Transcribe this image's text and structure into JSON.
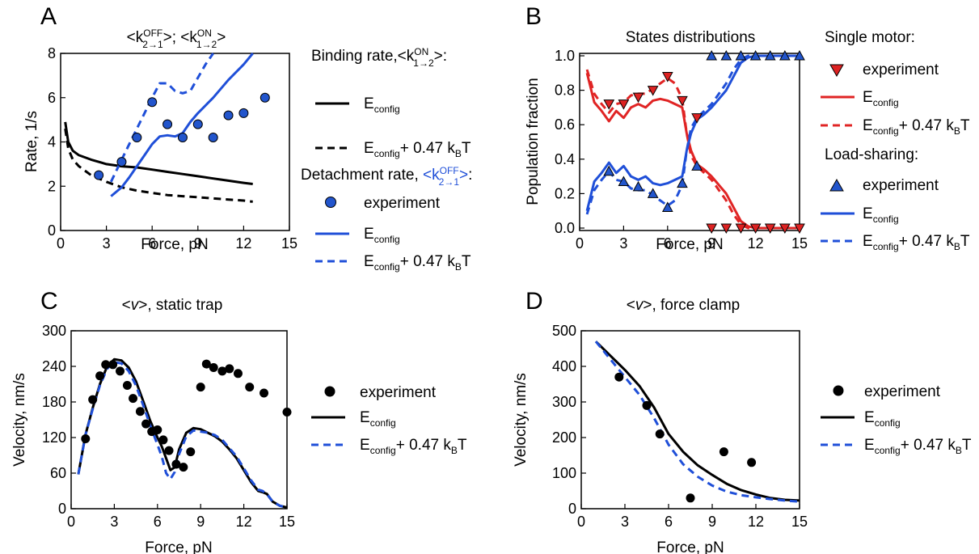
{
  "colors": {
    "black": "#000000",
    "blue": "#1f4fd8",
    "red": "#e02424",
    "marker_blue": "#2255cc",
    "marker_red": "#dd2222"
  },
  "panels": {
    "A": {
      "letter": "A",
      "title_parts": [
        "<k",
        "OFF",
        "2→1",
        ">; <k",
        "ON",
        "1→2",
        ">"
      ],
      "xlabel": "Force, pN",
      "ylabel": "Rate, 1/s",
      "legend": {
        "binding_header": [
          "Binding rate,<k",
          "ON",
          "1→2",
          ">:"
        ],
        "detach_header": [
          "Detachment rate, ",
          "<k",
          "OFF",
          "2→1",
          ">",
          ":"
        ]
      }
    },
    "B": {
      "letter": "B",
      "title": "States distributions",
      "xlabel": "Force, pN",
      "ylabel": "Population fraction",
      "legend": {
        "single_header": "Single motor:",
        "load_header": "Load-sharing:"
      }
    },
    "C": {
      "letter": "C",
      "title_parts": [
        "<",
        "v",
        ">, static trap"
      ],
      "xlabel": "Force, pN",
      "ylabel": "Velocity, nm/s"
    },
    "D": {
      "letter": "D",
      "title_parts": [
        "<",
        "v",
        ">, force clamp"
      ],
      "xlabel": "Force, pN",
      "ylabel": "Velocity, nm/s"
    }
  },
  "legend_labels": {
    "experiment": "experiment",
    "E": "E",
    "config_sub": "config",
    "plus_text": "+ 0.47 k",
    "B_sub": "B",
    "T": "T"
  },
  "chart_data": [
    {
      "panel": "A",
      "type": "scatter",
      "xlim": [
        0,
        15
      ],
      "ylim": [
        0,
        8
      ],
      "xticks": [
        0,
        3,
        6,
        9,
        12,
        15
      ],
      "yticks": [
        0,
        2,
        4,
        6,
        8
      ],
      "series": [
        {
          "role": "binding",
          "style": "solid",
          "color": "#000000",
          "x": [
            0.3,
            0.5,
            0.8,
            1.2,
            2,
            3,
            4,
            5,
            6,
            7,
            8,
            9,
            10,
            11,
            12,
            12.6
          ],
          "y": [
            4.9,
            4.0,
            3.6,
            3.4,
            3.2,
            3.0,
            2.9,
            2.85,
            2.75,
            2.65,
            2.55,
            2.45,
            2.35,
            2.25,
            2.15,
            2.1
          ]
        },
        {
          "role": "binding",
          "style": "dashed",
          "color": "#000000",
          "x": [
            0.3,
            0.5,
            0.8,
            1.2,
            2,
            3,
            4,
            5,
            6,
            7,
            8,
            9,
            10,
            11,
            12,
            12.6
          ],
          "y": [
            4.6,
            3.7,
            3.2,
            2.9,
            2.5,
            2.2,
            1.95,
            1.8,
            1.7,
            1.6,
            1.55,
            1.5,
            1.45,
            1.4,
            1.35,
            1.3
          ]
        },
        {
          "role": "detachment",
          "style": "markers",
          "color": "#2255cc",
          "x": [
            2.5,
            4,
            5,
            6,
            7,
            8,
            9,
            10,
            11,
            12,
            13.4
          ],
          "y": [
            2.5,
            3.1,
            4.2,
            5.8,
            4.8,
            4.2,
            4.8,
            4.2,
            5.2,
            5.3,
            6.0
          ]
        },
        {
          "role": "detachment",
          "style": "solid",
          "color": "#1f4fd8",
          "x": [
            3.3,
            4,
            4.5,
            5,
            5.5,
            6,
            6.5,
            7,
            7.5,
            8,
            8.5,
            9,
            10,
            11,
            12,
            12.6
          ],
          "y": [
            1.55,
            1.95,
            2.4,
            2.9,
            3.4,
            3.9,
            4.25,
            4.3,
            4.25,
            4.4,
            4.9,
            5.3,
            6.0,
            6.8,
            7.5,
            8.0
          ]
        },
        {
          "role": "detachment",
          "style": "dashed",
          "color": "#1f4fd8",
          "x": [
            3.3,
            4,
            4.5,
            5,
            5.5,
            6,
            6.5,
            7,
            7.5,
            8,
            8.5,
            9,
            9.5,
            10
          ],
          "y": [
            2.2,
            3.2,
            3.9,
            4.6,
            5.3,
            6.0,
            6.65,
            6.65,
            6.3,
            6.2,
            6.3,
            6.9,
            7.5,
            8.0
          ]
        }
      ]
    },
    {
      "panel": "B",
      "type": "scatter",
      "xlim": [
        0,
        15
      ],
      "ylim": [
        0,
        1.0
      ],
      "xticks": [
        0,
        3,
        6,
        9,
        12,
        15
      ],
      "yticks": [
        0.0,
        0.2,
        0.4,
        0.6,
        0.8,
        1.0
      ],
      "series": [
        {
          "name": "Single motor: experiment",
          "style": "markers-down",
          "color": "#dd2222",
          "x": [
            2,
            3,
            4,
            5,
            6,
            7,
            8,
            9,
            10,
            11,
            12,
            13,
            14,
            15
          ],
          "y": [
            0.72,
            0.72,
            0.76,
            0.8,
            0.88,
            0.74,
            0.64,
            0.0,
            0.0,
            0.0,
            0.0,
            0.0,
            0.0,
            0.0
          ]
        },
        {
          "name": "Single motor: E_config",
          "style": "solid",
          "color": "#e02424",
          "x": [
            0.5,
            1,
            1.5,
            2,
            2.5,
            3,
            3.5,
            4,
            4.5,
            5,
            5.5,
            6,
            6.5,
            7,
            7.3,
            7.6,
            8,
            8.5,
            9,
            9.5,
            10,
            10.5,
            11,
            11.5,
            12,
            13,
            14,
            15
          ],
          "y": [
            0.9,
            0.73,
            0.68,
            0.62,
            0.68,
            0.64,
            0.7,
            0.72,
            0.7,
            0.74,
            0.75,
            0.74,
            0.72,
            0.7,
            0.55,
            0.45,
            0.37,
            0.34,
            0.3,
            0.25,
            0.2,
            0.12,
            0.04,
            0.01,
            0.0,
            0.0,
            0.0,
            0.0
          ]
        },
        {
          "name": "Single motor: E_config + 0.47",
          "style": "dashed",
          "color": "#e02424",
          "x": [
            0.5,
            1,
            1.5,
            2,
            2.5,
            3,
            3.5,
            4,
            4.5,
            5,
            5.5,
            6,
            6.5,
            7,
            7.3,
            7.6,
            8,
            8.5,
            9,
            9.5,
            10,
            10.5,
            11,
            11.5,
            12,
            13,
            14,
            15
          ],
          "y": [
            0.92,
            0.78,
            0.72,
            0.67,
            0.72,
            0.73,
            0.77,
            0.78,
            0.78,
            0.81,
            0.84,
            0.87,
            0.84,
            0.75,
            0.55,
            0.42,
            0.36,
            0.32,
            0.28,
            0.22,
            0.16,
            0.08,
            0.02,
            0.0,
            0.0,
            0.0,
            0.0,
            0.0
          ]
        },
        {
          "name": "Load-sharing: experiment",
          "style": "markers-up",
          "color": "#2255cc",
          "x": [
            2,
            3,
            4,
            5,
            6,
            7,
            8,
            9,
            10,
            11,
            12,
            13,
            14,
            15
          ],
          "y": [
            0.33,
            0.27,
            0.24,
            0.2,
            0.12,
            0.26,
            0.36,
            1.0,
            1.0,
            1.0,
            1.0,
            1.0,
            1.0,
            1.0
          ]
        },
        {
          "name": "Load-sharing: E_config",
          "style": "solid",
          "color": "#1f4fd8",
          "x": [
            0.5,
            1,
            1.5,
            2,
            2.5,
            3,
            3.5,
            4,
            4.5,
            5,
            5.5,
            6,
            6.5,
            7,
            7.3,
            7.6,
            8,
            8.5,
            9,
            9.5,
            10,
            10.5,
            11,
            11.5,
            12,
            13,
            14,
            15
          ],
          "y": [
            0.1,
            0.27,
            0.32,
            0.38,
            0.32,
            0.36,
            0.3,
            0.28,
            0.3,
            0.26,
            0.25,
            0.26,
            0.28,
            0.3,
            0.45,
            0.55,
            0.63,
            0.66,
            0.7,
            0.75,
            0.8,
            0.88,
            0.96,
            0.99,
            1.0,
            1.0,
            1.0,
            1.0
          ]
        },
        {
          "name": "Load-sharing: E_config + 0.47",
          "style": "dashed",
          "color": "#1f4fd8",
          "x": [
            0.5,
            1,
            1.5,
            2,
            2.5,
            3,
            3.5,
            4,
            4.5,
            5,
            5.5,
            6,
            6.5,
            7,
            7.3,
            7.6,
            8,
            8.5,
            9,
            9.5,
            10,
            10.5,
            11,
            11.5,
            12,
            13,
            14,
            15
          ],
          "y": [
            0.08,
            0.22,
            0.28,
            0.33,
            0.28,
            0.27,
            0.23,
            0.22,
            0.22,
            0.19,
            0.16,
            0.13,
            0.16,
            0.25,
            0.45,
            0.58,
            0.64,
            0.68,
            0.72,
            0.78,
            0.84,
            0.92,
            0.98,
            1.0,
            1.0,
            1.0,
            1.0,
            1.0
          ]
        }
      ]
    },
    {
      "panel": "C",
      "type": "scatter",
      "xlim": [
        0,
        15
      ],
      "ylim": [
        0,
        300
      ],
      "xticks": [
        0,
        3,
        6,
        9,
        12,
        15
      ],
      "yticks": [
        0,
        60,
        120,
        180,
        240,
        300
      ],
      "series": [
        {
          "name": "experiment",
          "style": "markers",
          "color": "#000000",
          "x": [
            1.0,
            1.5,
            2.0,
            2.4,
            2.9,
            3.4,
            3.9,
            4.3,
            4.8,
            5.2,
            5.6,
            6.0,
            6.4,
            6.8,
            7.3,
            7.8,
            8.3,
            9.0,
            9.4,
            9.9,
            10.5,
            11.0,
            11.6,
            12.4,
            13.4,
            15.0
          ],
          "y": [
            118,
            184,
            224,
            243,
            243,
            232,
            208,
            186,
            164,
            143,
            130,
            133,
            116,
            98,
            75,
            70,
            96,
            205,
            244,
            238,
            232,
            236,
            228,
            205,
            195,
            163
          ]
        },
        {
          "name": "E_config",
          "style": "solid",
          "color": "#000000",
          "x": [
            0.5,
            1,
            1.5,
            2,
            2.5,
            3,
            3.5,
            4,
            4.5,
            5,
            5.5,
            6,
            6.3,
            6.6,
            6.9,
            7.2,
            7.5,
            8,
            8.5,
            9,
            9.5,
            10,
            10.5,
            11,
            11.5,
            12,
            12.5,
            13,
            13.3,
            13.6,
            14,
            14.5,
            15
          ],
          "y": [
            58,
            125,
            170,
            210,
            240,
            252,
            250,
            238,
            215,
            182,
            148,
            120,
            105,
            85,
            65,
            70,
            100,
            128,
            136,
            134,
            128,
            122,
            113,
            100,
            85,
            65,
            45,
            30,
            28,
            25,
            12,
            5,
            2
          ]
        },
        {
          "name": "E_config + 0.47",
          "style": "dashed",
          "color": "#1f4fd8",
          "x": [
            0.5,
            1,
            1.5,
            2,
            2.5,
            3,
            3.5,
            4,
            4.5,
            5,
            5.5,
            6,
            6.3,
            6.6,
            6.9,
            7.2,
            7.5,
            8,
            8.5,
            9,
            9.5,
            10,
            10.5,
            11,
            11.5,
            12,
            12.5,
            13,
            13.3,
            13.6,
            14,
            14.5,
            15
          ],
          "y": [
            58,
            125,
            168,
            208,
            236,
            247,
            245,
            232,
            208,
            175,
            140,
            108,
            88,
            60,
            50,
            62,
            92,
            122,
            132,
            130,
            128,
            124,
            116,
            102,
            88,
            68,
            48,
            32,
            30,
            25,
            12,
            5,
            2
          ]
        }
      ]
    },
    {
      "panel": "D",
      "type": "scatter",
      "xlim": [
        0,
        15
      ],
      "ylim": [
        0,
        500
      ],
      "xticks": [
        0,
        3,
        6,
        9,
        12,
        15
      ],
      "yticks": [
        0,
        100,
        200,
        300,
        400,
        500
      ],
      "series": [
        {
          "name": "experiment",
          "style": "markers",
          "color": "#000000",
          "x": [
            2.6,
            4.5,
            5.4,
            7.5,
            9.8,
            11.7
          ],
          "y": [
            370,
            290,
            210,
            30,
            160,
            130
          ]
        },
        {
          "name": "E_config",
          "style": "solid",
          "color": "#000000",
          "x": [
            1,
            2,
            3,
            4,
            5,
            6,
            7,
            8,
            9,
            10,
            11,
            12,
            13,
            14,
            15
          ],
          "y": [
            470,
            430,
            390,
            345,
            285,
            210,
            160,
            122,
            95,
            70,
            52,
            40,
            30,
            25,
            23
          ]
        },
        {
          "name": "E_config + 0.47",
          "style": "dashed",
          "color": "#1f4fd8",
          "x": [
            1,
            2,
            3,
            4,
            5,
            6,
            7,
            8,
            9,
            10,
            11,
            12,
            13,
            14,
            15
          ],
          "y": [
            470,
            420,
            370,
            320,
            255,
            180,
            125,
            90,
            65,
            48,
            38,
            32,
            27,
            23,
            20
          ]
        }
      ]
    }
  ]
}
